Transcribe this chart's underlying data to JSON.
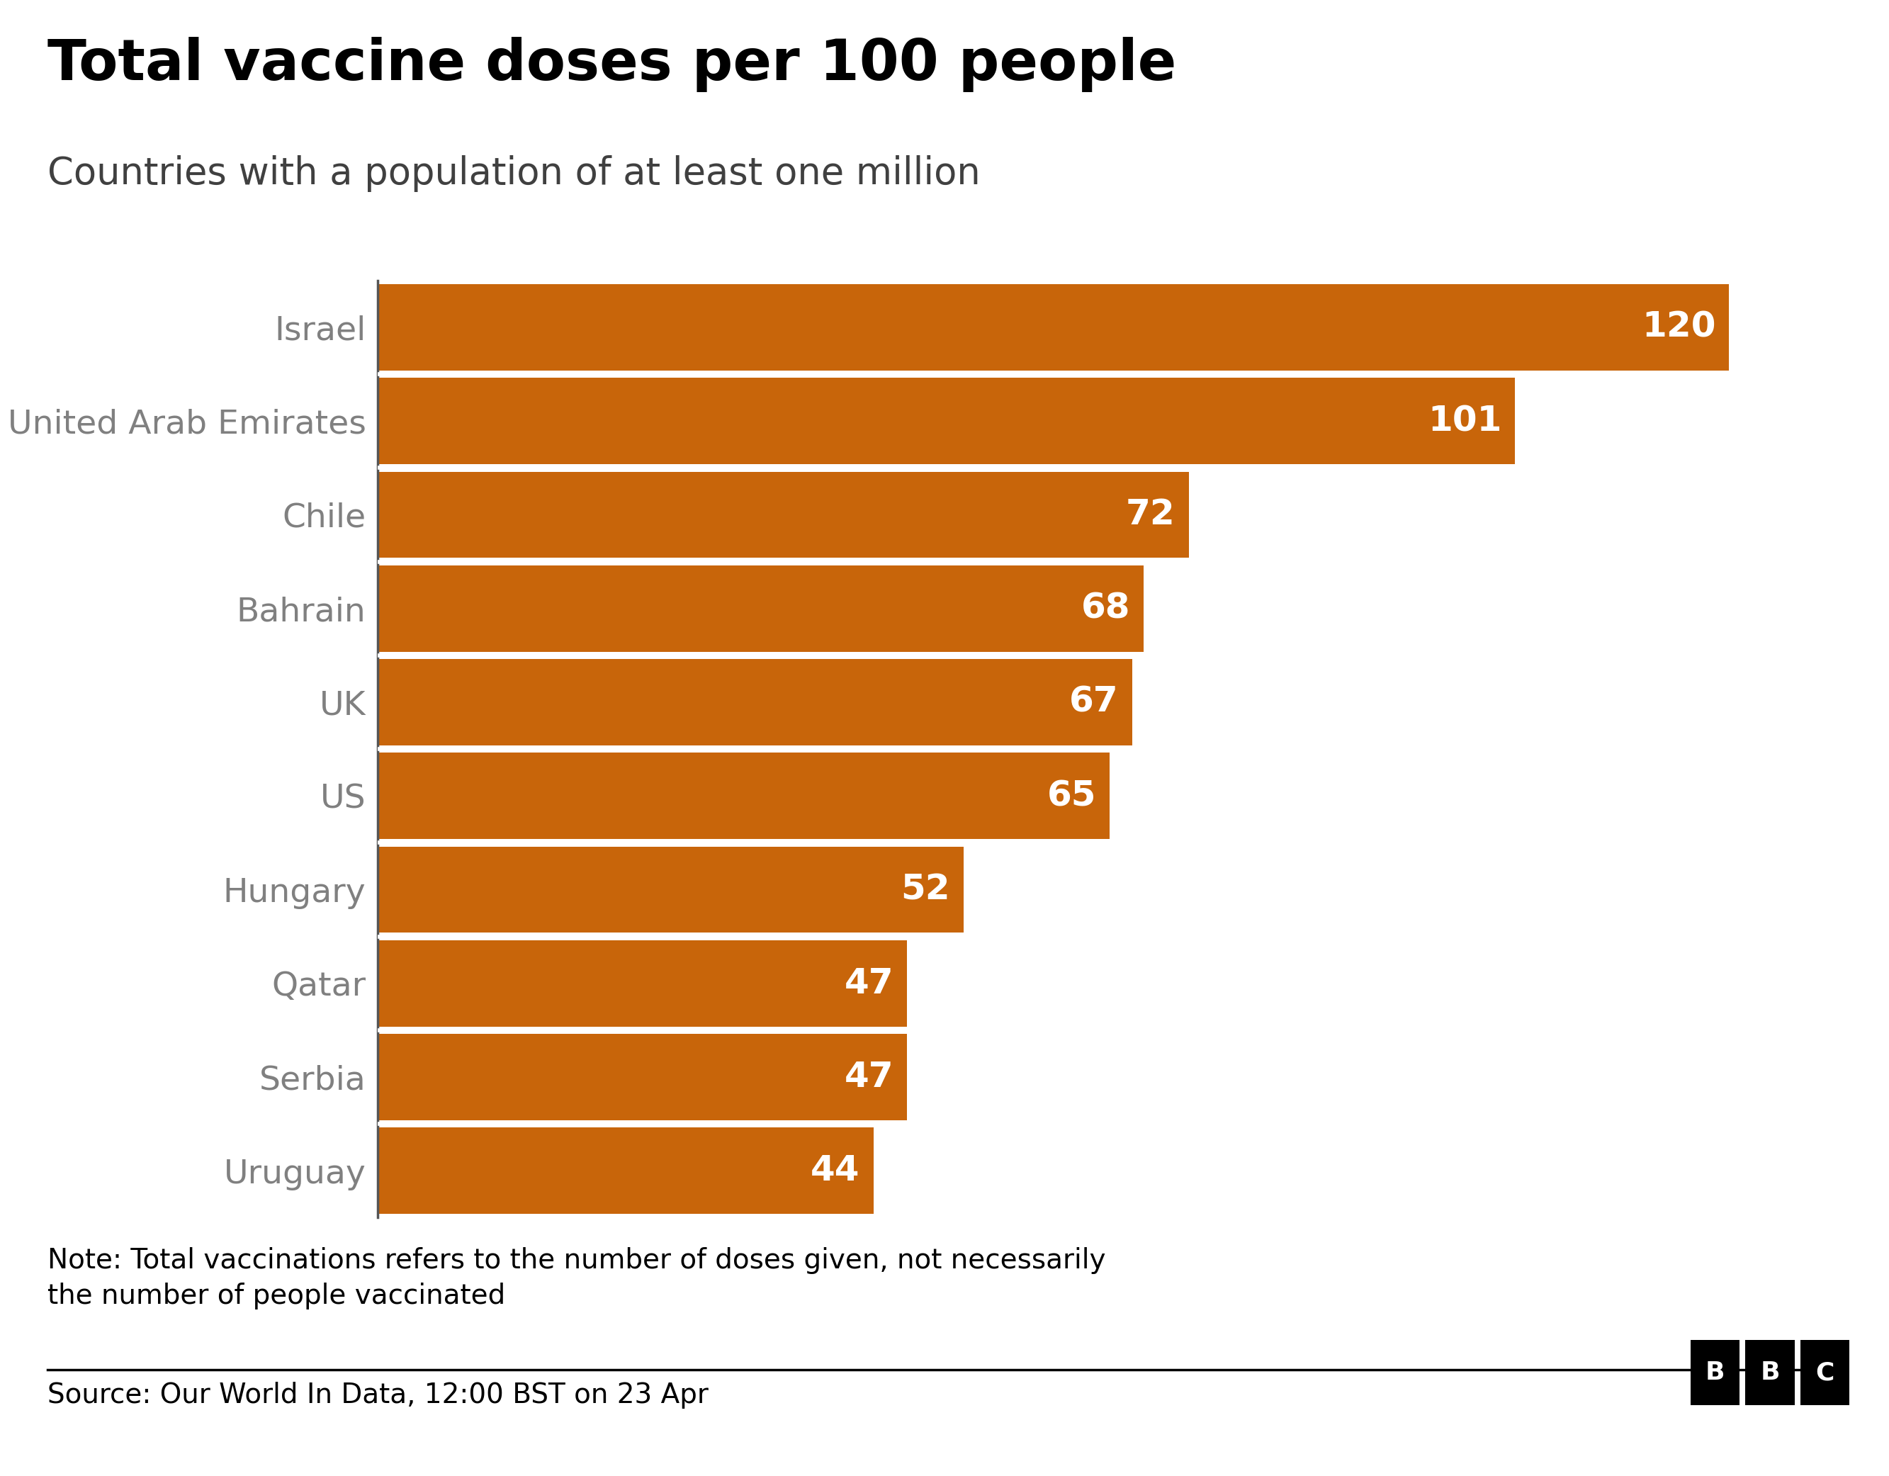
{
  "title": "Total vaccine doses per 100 people",
  "subtitle": "Countries with a population of at least one million",
  "countries": [
    "Israel",
    "United Arab Emirates",
    "Chile",
    "Bahrain",
    "UK",
    "US",
    "Hungary",
    "Qatar",
    "Serbia",
    "Uruguay"
  ],
  "values": [
    120,
    101,
    72,
    68,
    67,
    65,
    52,
    47,
    47,
    44
  ],
  "bar_color": "#C8650A",
  "bar_gap_color": "#ffffff",
  "label_color": "#ffffff",
  "country_label_color": "#808080",
  "title_color": "#000000",
  "subtitle_color": "#404040",
  "note_text": "Note: Total vaccinations refers to the number of doses given, not necessarily\nthe number of people vaccinated",
  "source_text": "Source: Our World In Data, 12:00 BST on 23 Apr",
  "background_color": "#ffffff",
  "title_fontsize": 58,
  "subtitle_fontsize": 38,
  "label_fontsize": 36,
  "country_fontsize": 34,
  "note_fontsize": 28,
  "source_fontsize": 28,
  "xlim": [
    0,
    130
  ]
}
